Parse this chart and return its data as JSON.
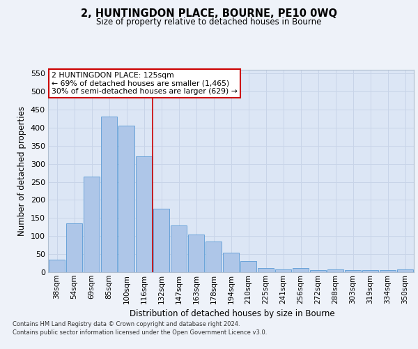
{
  "title1": "2, HUNTINGDON PLACE, BOURNE, PE10 0WQ",
  "title2": "Size of property relative to detached houses in Bourne",
  "xlabel": "Distribution of detached houses by size in Bourne",
  "ylabel": "Number of detached properties",
  "categories": [
    "38sqm",
    "54sqm",
    "69sqm",
    "85sqm",
    "100sqm",
    "116sqm",
    "132sqm",
    "147sqm",
    "163sqm",
    "178sqm",
    "194sqm",
    "210sqm",
    "225sqm",
    "241sqm",
    "256sqm",
    "272sqm",
    "288sqm",
    "303sqm",
    "319sqm",
    "334sqm",
    "350sqm"
  ],
  "values": [
    35,
    135,
    265,
    430,
    405,
    320,
    175,
    130,
    105,
    85,
    55,
    30,
    12,
    8,
    12,
    5,
    8,
    5,
    5,
    5,
    8
  ],
  "bar_color": "#aec6e8",
  "bar_edge_color": "#5b9bd5",
  "grid_color": "#c8d4e8",
  "background_color": "#dce6f5",
  "fig_background_color": "#eef2f9",
  "annotation_text": "2 HUNTINGDON PLACE: 125sqm\n← 69% of detached houses are smaller (1,465)\n30% of semi-detached houses are larger (629) →",
  "annotation_box_color": "#ffffff",
  "annotation_box_edge_color": "#cc0000",
  "red_line_x": 5.5,
  "ylim": [
    0,
    560
  ],
  "yticks": [
    0,
    50,
    100,
    150,
    200,
    250,
    300,
    350,
    400,
    450,
    500,
    550
  ],
  "footer1": "Contains HM Land Registry data © Crown copyright and database right 2024.",
  "footer2": "Contains public sector information licensed under the Open Government Licence v3.0."
}
